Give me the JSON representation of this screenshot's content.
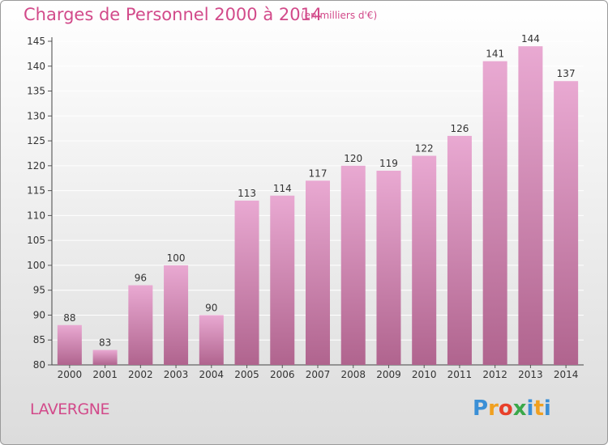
{
  "colors": {
    "title": "#d24a8a",
    "bar_top": "#e9a9d2",
    "bar_bottom": "#b0648e",
    "axis_text": "#333333",
    "grid": "#ffffff"
  },
  "footer": {
    "commune": "LAVERGNE",
    "logo_letters": [
      {
        "char": "P",
        "color": "#3a8fd6"
      },
      {
        "char": "r",
        "color": "#f0a020"
      },
      {
        "char": "o",
        "color": "#e8402a"
      },
      {
        "char": "x",
        "color": "#3aa84a"
      },
      {
        "char": "i",
        "color": "#3a8fd6"
      },
      {
        "char": "t",
        "color": "#f0a020"
      },
      {
        "char": "i",
        "color": "#3a8fd6"
      }
    ]
  },
  "chart_data": {
    "type": "bar",
    "title": "Charges de Personnel 2000 à 2014",
    "unit": "(en milliers d'€)",
    "categories": [
      "2000",
      "2001",
      "2002",
      "2003",
      "2004",
      "2005",
      "2006",
      "2007",
      "2008",
      "2009",
      "2010",
      "2011",
      "2012",
      "2013",
      "2014"
    ],
    "values": [
      88,
      83,
      96,
      100,
      90,
      113,
      114,
      117,
      120,
      119,
      122,
      126,
      141,
      144,
      137
    ],
    "ylim": [
      80,
      145
    ],
    "yticks": [
      80,
      85,
      90,
      95,
      100,
      105,
      110,
      115,
      120,
      125,
      130,
      135,
      140,
      145
    ],
    "grid": true,
    "data_labels": true
  }
}
